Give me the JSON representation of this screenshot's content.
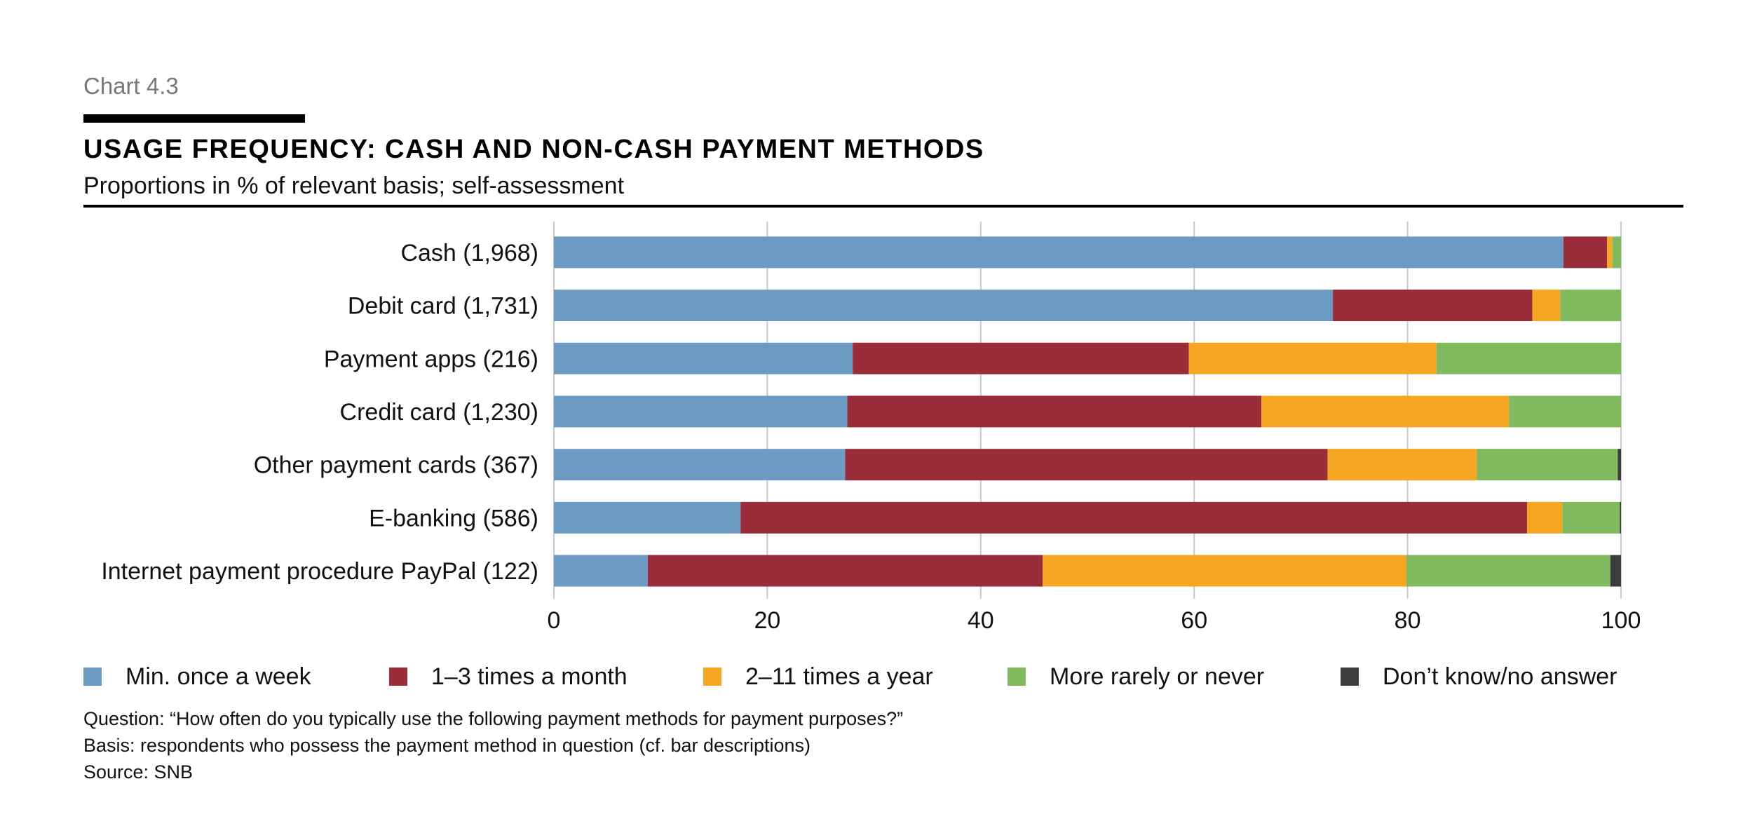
{
  "header": {
    "chart_number": "Chart 4.3",
    "title": "USAGE FREQUENCY: CASH AND NON-CASH PAYMENT METHODS",
    "subtitle": "Proportions in % of relevant basis; self-assessment"
  },
  "notes": {
    "question": "Question: “How often do you typically use the following payment methods for payment purposes?”",
    "basis": "Basis: respondents who possess the payment method in question (cf. bar descriptions)",
    "source": "Source: SNB"
  },
  "colors": {
    "min_once_week": "#6b9bc3",
    "one_three_month": "#9b2c3a",
    "two_eleven_year": "#f5a623",
    "more_rarely": "#80ba5e",
    "dont_know": "#3c3c3c",
    "grid": "#c8c8c8"
  },
  "chart_data": {
    "type": "bar",
    "orientation": "horizontal",
    "stacked": true,
    "categories": [
      "Cash (1,968)",
      "Debit card (1,731)",
      "Payment apps (216)",
      "Credit card (1,230)",
      "Other payment cards (367)",
      "E-banking (586)",
      "Internet payment procedure PayPal (122)"
    ],
    "series": [
      {
        "name": "Min. once a week",
        "color": "#6b9bc3",
        "values": [
          94.6,
          73.0,
          28.0,
          27.5,
          27.3,
          17.5,
          8.8
        ]
      },
      {
        "name": "1–3 times a month",
        "color": "#9b2c3a",
        "values": [
          4.1,
          18.7,
          31.5,
          38.8,
          45.2,
          73.7,
          37.0
        ]
      },
      {
        "name": "2–11 times a year",
        "color": "#f5a623",
        "values": [
          0.5,
          2.6,
          23.2,
          23.2,
          14.0,
          3.3,
          34.1
        ]
      },
      {
        "name": "More rarely or never",
        "color": "#80ba5e",
        "values": [
          0.8,
          5.7,
          17.3,
          10.5,
          13.2,
          5.4,
          19.1
        ]
      },
      {
        "name": "Don’t know/no answer",
        "color": "#3c3c3c",
        "values": [
          0.0,
          0.0,
          0.0,
          0.0,
          0.3,
          0.1,
          1.0
        ]
      }
    ],
    "x_ticks": [
      "0",
      "20",
      "40",
      "60",
      "80",
      "100"
    ],
    "xlim": [
      0,
      100
    ],
    "grid": "vertical",
    "legend_position": "bottom"
  }
}
